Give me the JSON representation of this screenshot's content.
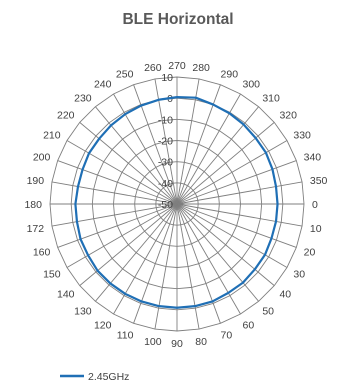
{
  "chart_data": {
    "type": "radar",
    "title": "BLE Horizontal",
    "angle_labels": [
      "270",
      "280",
      "290",
      "300",
      "310",
      "320",
      "330",
      "340",
      "350",
      "0",
      "10",
      "20",
      "30",
      "40",
      "50",
      "60",
      "70",
      "80",
      "90",
      "100",
      "110",
      "120",
      "130",
      "140",
      "150",
      "160",
      "172",
      "180",
      "190",
      "200",
      "210",
      "220",
      "230",
      "240",
      "250",
      "260"
    ],
    "radial_ticks": [
      "10",
      "0",
      "-10",
      "-20",
      "-30",
      "-40",
      "-50"
    ],
    "rlim": [
      -50,
      10
    ],
    "grid": true,
    "legend_position": "bottom-left",
    "series": [
      {
        "name": "2.45GHz",
        "color": "#1f6fb5",
        "values": [
          0.5,
          1,
          0,
          -0.5,
          -1,
          -1.5,
          -1.5,
          -2,
          -2.5,
          -2.5,
          -2.5,
          -2.5,
          -2,
          -2,
          -1.5,
          -1.5,
          -1,
          -1,
          -1,
          -1,
          -1,
          -1,
          -1,
          -1,
          -1.5,
          -1.5,
          -2,
          -2,
          -2.5,
          -2.5,
          -2,
          -2,
          -1.5,
          -1,
          -0.5,
          0
        ]
      }
    ]
  }
}
